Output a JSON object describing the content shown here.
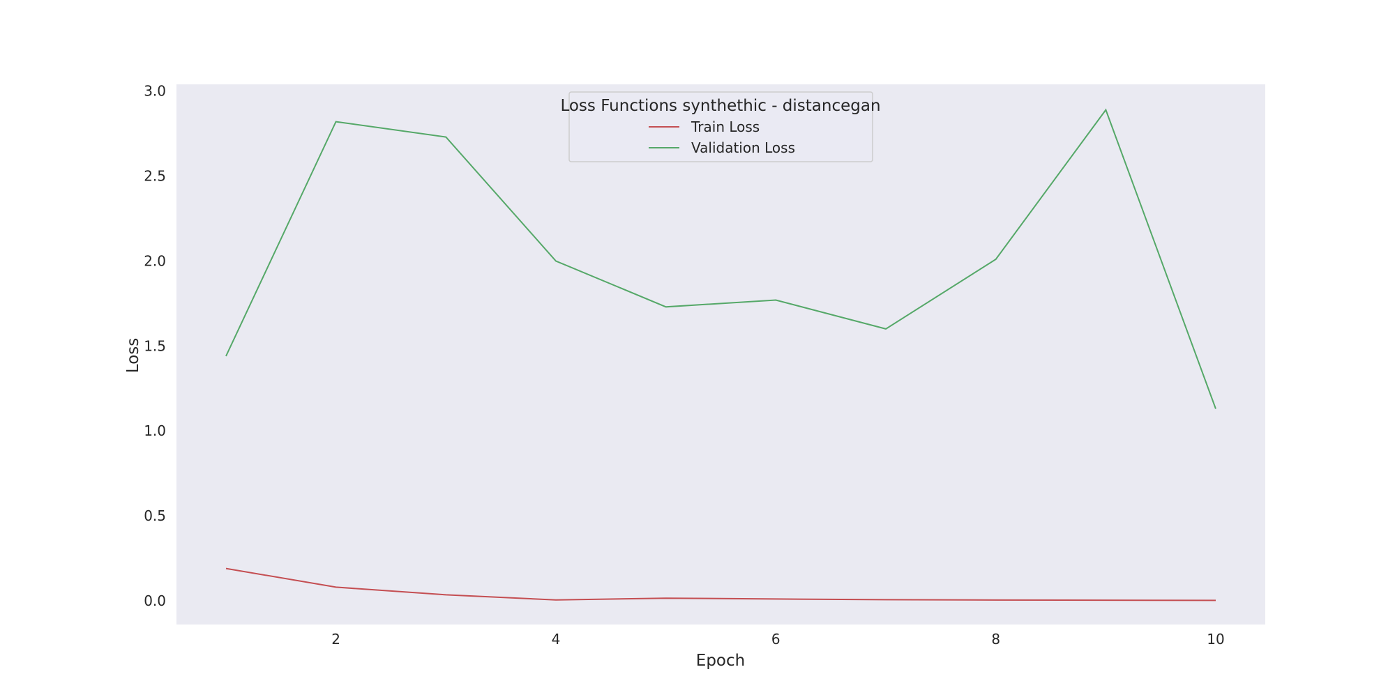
{
  "chart_data": {
    "type": "line",
    "x": [
      1,
      2,
      3,
      4,
      5,
      6,
      7,
      8,
      9,
      10
    ],
    "series": [
      {
        "name": "Train Loss",
        "color": "#c44e52",
        "values": [
          0.19,
          0.08,
          0.035,
          0.005,
          0.015,
          0.01,
          0.006,
          0.004,
          0.003,
          0.002
        ]
      },
      {
        "name": "Validation Loss",
        "color": "#55a868",
        "values": [
          1.44,
          2.82,
          2.73,
          2.0,
          1.73,
          1.77,
          1.6,
          2.01,
          2.89,
          1.13
        ]
      }
    ],
    "xlabel": "Epoch",
    "ylabel": "Loss",
    "xlim": [
      0.55,
      10.45
    ],
    "ylim": [
      -0.14,
      3.04
    ],
    "xticks": [
      2,
      4,
      6,
      8,
      10
    ],
    "yticks": [
      0.0,
      0.5,
      1.0,
      1.5,
      2.0,
      2.5,
      3.0
    ],
    "ytick_labels": [
      "0.0",
      "0.5",
      "1.0",
      "1.5",
      "2.0",
      "2.5",
      "3.0"
    ],
    "xtick_labels": [
      "2",
      "4",
      "6",
      "8",
      "10"
    ],
    "legend": {
      "title": "Loss Functions synthethic - distancegan",
      "placement": "upper-center"
    },
    "grid": false,
    "background": "#eaeaf2"
  }
}
